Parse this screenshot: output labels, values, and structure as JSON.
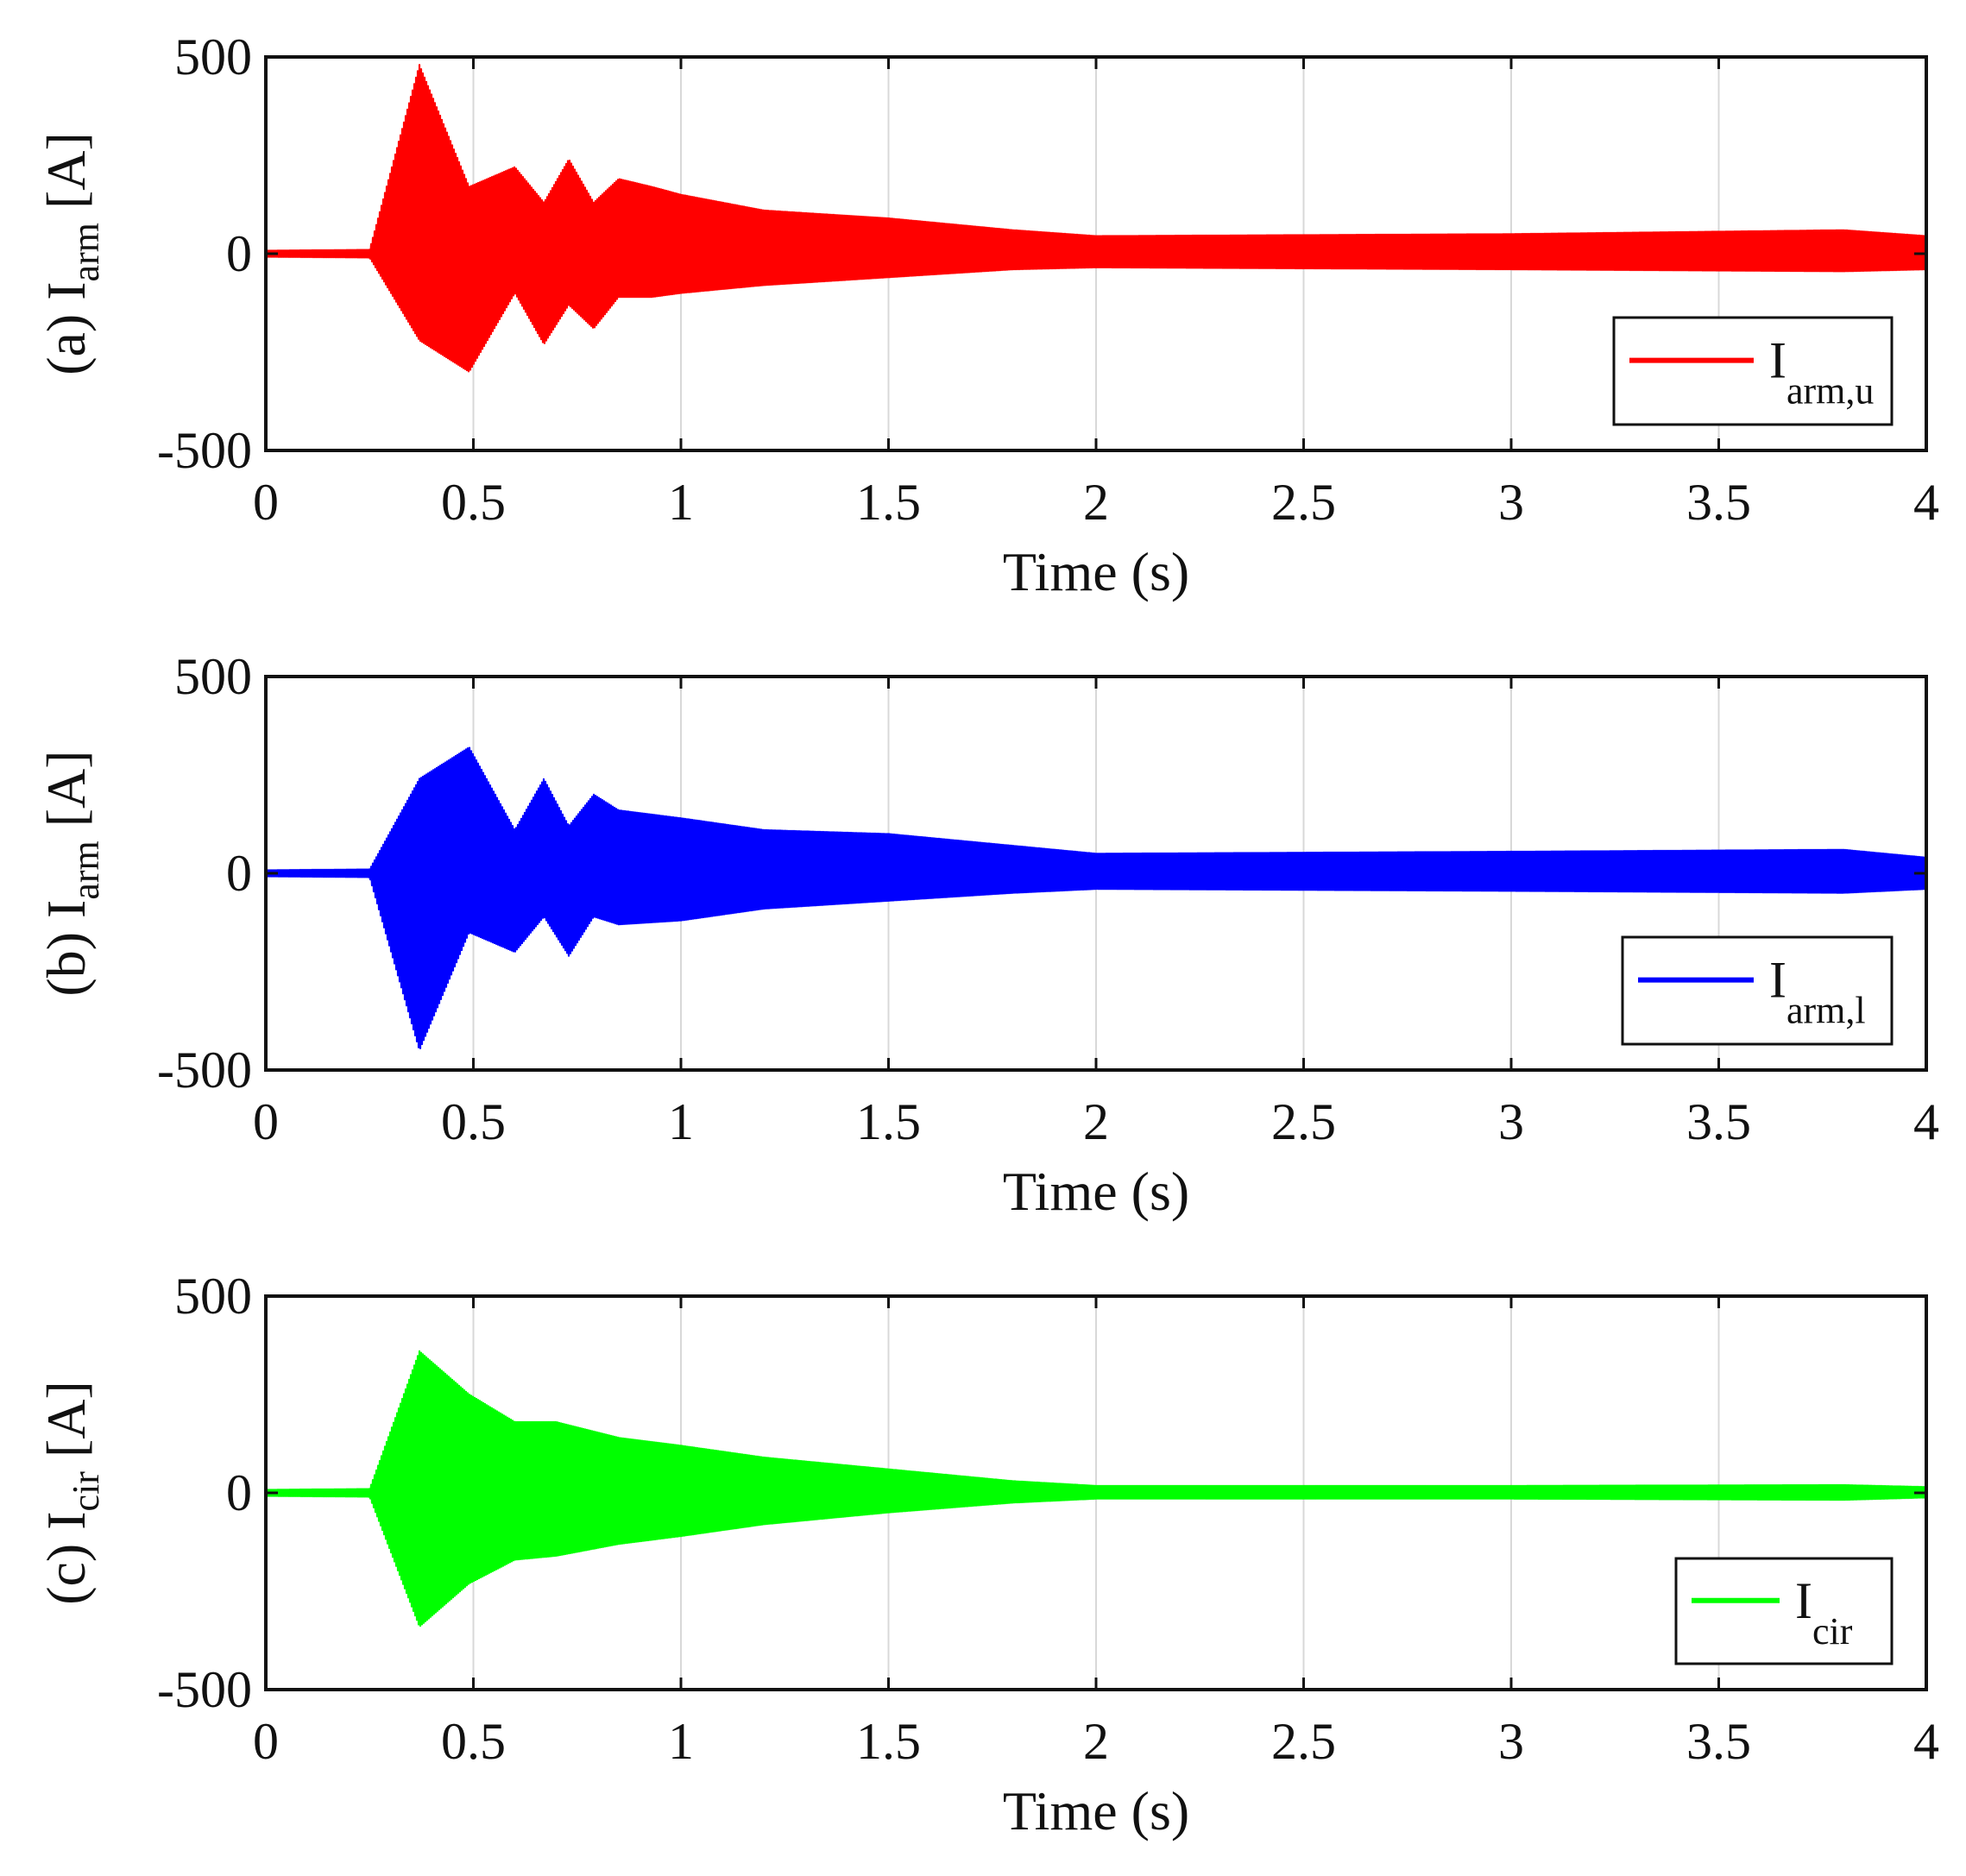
{
  "chart_data": [
    {
      "type": "line",
      "panel": "(a)",
      "ylabel": {
        "prefix": "(a) I",
        "sub": "arm",
        "suffix": " [A]"
      },
      "xlabel": "Time (s)",
      "xlim": [
        0,
        4
      ],
      "ylim": [
        -500,
        500
      ],
      "xticks": [
        "0",
        "0.5",
        "1",
        "1.5",
        "2",
        "2.5",
        "3",
        "3.5",
        "4"
      ],
      "yticks": [
        "-500",
        "0",
        "500"
      ],
      "grid": "vertical",
      "legend": {
        "position": "bottom-right",
        "label_main": "I",
        "label_sub": "arm,u"
      },
      "series": [
        {
          "name": "I_arm,u",
          "color": "#ff0000",
          "onset_s": 0.25,
          "steady_amplitude_a": 40,
          "end_change_s": 3.8,
          "envelope": [
            {
              "t": 0.0,
              "max": 8,
              "min": -8
            },
            {
              "t": 0.25,
              "max": 10,
              "min": -10
            },
            {
              "t": 0.37,
              "max": 480,
              "min": -220
            },
            {
              "t": 0.49,
              "max": 170,
              "min": -300
            },
            {
              "t": 0.6,
              "max": 220,
              "min": -100
            },
            {
              "t": 0.67,
              "max": 130,
              "min": -230
            },
            {
              "t": 0.73,
              "max": 240,
              "min": -130
            },
            {
              "t": 0.79,
              "max": 130,
              "min": -190
            },
            {
              "t": 0.85,
              "max": 190,
              "min": -110
            },
            {
              "t": 0.93,
              "max": 170,
              "min": -110
            },
            {
              "t": 1.0,
              "max": 150,
              "min": -100
            },
            {
              "t": 1.2,
              "max": 110,
              "min": -80
            },
            {
              "t": 1.5,
              "max": 90,
              "min": -60
            },
            {
              "t": 1.8,
              "max": 60,
              "min": -40
            },
            {
              "t": 2.0,
              "max": 45,
              "min": -35
            },
            {
              "t": 3.0,
              "max": 50,
              "min": -40
            },
            {
              "t": 3.8,
              "max": 60,
              "min": -45
            },
            {
              "t": 4.0,
              "max": 45,
              "min": -40
            }
          ]
        }
      ]
    },
    {
      "type": "line",
      "panel": "(b)",
      "ylabel": {
        "prefix": "(b) I",
        "sub": "arm",
        "suffix": " [A]"
      },
      "xlabel": "Time (s)",
      "xlim": [
        0,
        4
      ],
      "ylim": [
        -500,
        500
      ],
      "xticks": [
        "0",
        "0.5",
        "1",
        "1.5",
        "2",
        "2.5",
        "3",
        "3.5",
        "4"
      ],
      "yticks": [
        "-500",
        "0",
        "500"
      ],
      "grid": "vertical",
      "legend": {
        "position": "bottom-right",
        "label_main": "I",
        "label_sub": "arm,l"
      },
      "series": [
        {
          "name": "I_arm,l",
          "color": "#0000ff",
          "onset_s": 0.25,
          "steady_amplitude_a": 40,
          "end_change_s": 3.8,
          "envelope": [
            {
              "t": 0.0,
              "max": 8,
              "min": -8
            },
            {
              "t": 0.25,
              "max": 10,
              "min": -10
            },
            {
              "t": 0.37,
              "max": 240,
              "min": -450
            },
            {
              "t": 0.49,
              "max": 320,
              "min": -150
            },
            {
              "t": 0.6,
              "max": 110,
              "min": -200
            },
            {
              "t": 0.67,
              "max": 240,
              "min": -110
            },
            {
              "t": 0.73,
              "max": 120,
              "min": -210
            },
            {
              "t": 0.79,
              "max": 200,
              "min": -110
            },
            {
              "t": 0.85,
              "max": 160,
              "min": -130
            },
            {
              "t": 1.0,
              "max": 140,
              "min": -120
            },
            {
              "t": 1.2,
              "max": 110,
              "min": -90
            },
            {
              "t": 1.5,
              "max": 100,
              "min": -70
            },
            {
              "t": 1.8,
              "max": 70,
              "min": -50
            },
            {
              "t": 2.0,
              "max": 50,
              "min": -40
            },
            {
              "t": 3.0,
              "max": 55,
              "min": -45
            },
            {
              "t": 3.8,
              "max": 60,
              "min": -50
            },
            {
              "t": 4.0,
              "max": 40,
              "min": -40
            }
          ]
        }
      ]
    },
    {
      "type": "line",
      "panel": "(c)",
      "ylabel": {
        "prefix": "(c) I",
        "sub": "cir",
        "suffix": " [A]"
      },
      "xlabel": "Time (s)",
      "xlim": [
        0,
        4
      ],
      "ylim": [
        -500,
        500
      ],
      "xticks": [
        "0",
        "0.5",
        "1",
        "1.5",
        "2",
        "2.5",
        "3",
        "3.5",
        "4"
      ],
      "yticks": [
        "-500",
        "0",
        "500"
      ],
      "grid": "vertical",
      "legend": {
        "position": "bottom-right",
        "label_main": "I",
        "label_sub": "cir"
      },
      "series": [
        {
          "name": "I_cir",
          "color": "#00ff00",
          "onset_s": 0.25,
          "steady_amplitude_a": 15,
          "end_change_s": 3.8,
          "envelope": [
            {
              "t": 0.0,
              "max": 8,
              "min": -8
            },
            {
              "t": 0.25,
              "max": 10,
              "min": -10
            },
            {
              "t": 0.37,
              "max": 360,
              "min": -340
            },
            {
              "t": 0.49,
              "max": 250,
              "min": -230
            },
            {
              "t": 0.6,
              "max": 180,
              "min": -170
            },
            {
              "t": 0.7,
              "max": 180,
              "min": -160
            },
            {
              "t": 0.85,
              "max": 140,
              "min": -130
            },
            {
              "t": 1.0,
              "max": 120,
              "min": -110
            },
            {
              "t": 1.2,
              "max": 90,
              "min": -80
            },
            {
              "t": 1.5,
              "max": 60,
              "min": -50
            },
            {
              "t": 1.8,
              "max": 30,
              "min": -25
            },
            {
              "t": 2.0,
              "max": 18,
              "min": -15
            },
            {
              "t": 3.0,
              "max": 18,
              "min": -15
            },
            {
              "t": 3.8,
              "max": 20,
              "min": -18
            },
            {
              "t": 4.0,
              "max": 15,
              "min": -12
            }
          ]
        }
      ]
    }
  ]
}
